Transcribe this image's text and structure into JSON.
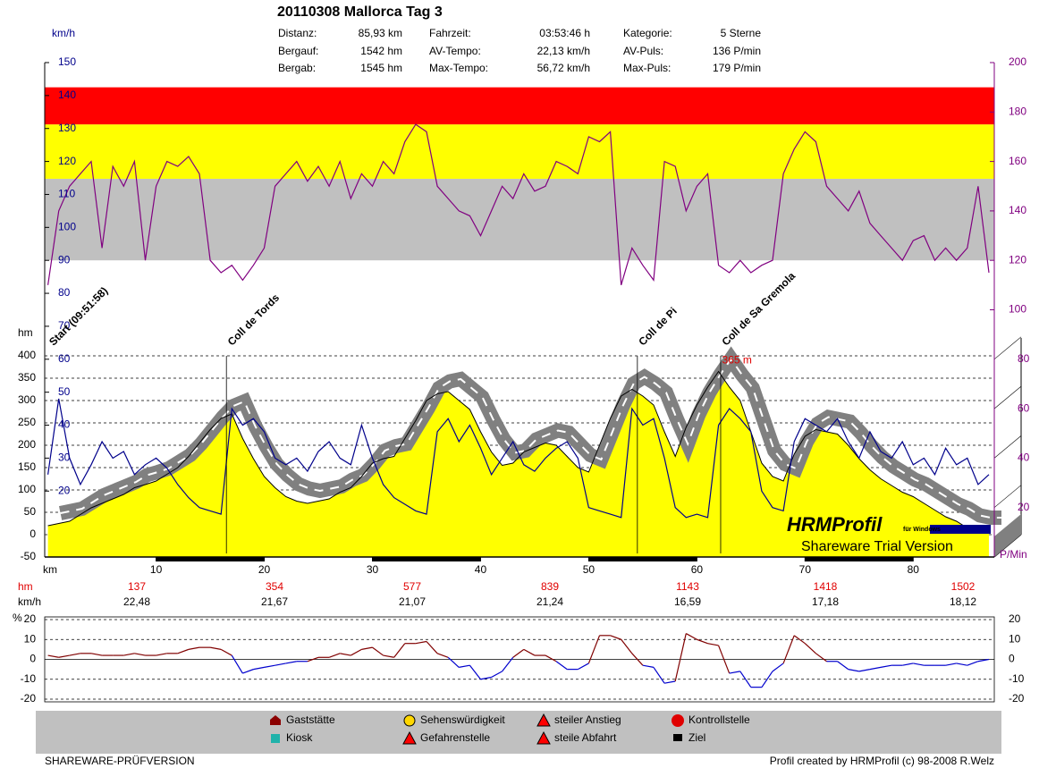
{
  "header": {
    "title": "20110308 Mallorca Tag 3",
    "stats": [
      {
        "label": "Distanz:",
        "value": "85,93 km"
      },
      {
        "label": "Fahrzeit:",
        "value": "03:53:46 h"
      },
      {
        "label": "Kategorie:",
        "value": "5 Sterne"
      },
      {
        "label": "Bergauf:",
        "value": "1542 hm"
      },
      {
        "label": "AV-Tempo:",
        "value": "22,13 km/h"
      },
      {
        "label": "AV-Puls:",
        "value": "136 P/min"
      },
      {
        "label": "Bergab:",
        "value": "1545 hm"
      },
      {
        "label": "Max-Tempo:",
        "value": "56,72 km/h"
      },
      {
        "label": "Max-Puls:",
        "value": "179 P/min"
      }
    ]
  },
  "chart_data": [
    {
      "type": "line",
      "xlabel": "km",
      "xlim": [
        -0.3,
        87.5
      ],
      "xticks": [
        10,
        20,
        30,
        40,
        50,
        60,
        70,
        80
      ],
      "ylabel": "km/h",
      "ylim": [
        0,
        150
      ],
      "yticks": [
        20,
        30,
        40,
        50,
        60,
        70,
        80,
        90,
        100,
        110,
        120,
        130,
        140,
        150
      ],
      "hm_label": "hm",
      "hm_lim": [
        -50,
        400
      ],
      "hm_ticks": [
        -50,
        0,
        50,
        100,
        150,
        200,
        250,
        300,
        350,
        400
      ],
      "y2label": "P/Min",
      "y2lim": [
        0,
        200
      ],
      "y2ticks": [
        100,
        120,
        140,
        160,
        180,
        200
      ],
      "depth_ticks": [
        20,
        40,
        60,
        80
      ],
      "grid": true,
      "zones": [
        {
          "from": 120,
          "to": 153,
          "color": "#c0c0c0"
        },
        {
          "from": 153,
          "to": 175,
          "color": "#ffff00"
        },
        {
          "from": 175,
          "to": 190,
          "color": "#ff0000"
        }
      ],
      "x": [
        0,
        1,
        2,
        3,
        4,
        5,
        6,
        7,
        8,
        9,
        10,
        11,
        12,
        13,
        14,
        15,
        16,
        17,
        18,
        19,
        20,
        21,
        22,
        23,
        24,
        25,
        26,
        27,
        28,
        29,
        30,
        31,
        32,
        33,
        34,
        35,
        36,
        37,
        38,
        39,
        40,
        41,
        42,
        43,
        44,
        45,
        46,
        47,
        48,
        49,
        50,
        51,
        52,
        53,
        54,
        55,
        56,
        57,
        58,
        59,
        60,
        61,
        62,
        63,
        64,
        65,
        66,
        67,
        68,
        69,
        70,
        71,
        72,
        73,
        74,
        75,
        76,
        77,
        78,
        79,
        80,
        81,
        82,
        83,
        84,
        85,
        86,
        87
      ],
      "series": [
        {
          "axis": "hm",
          "color": "#ffff00",
          "values": [
            20,
            25,
            30,
            45,
            60,
            70,
            80,
            90,
            105,
            112,
            120,
            135,
            150,
            175,
            205,
            235,
            260,
            270,
            215,
            170,
            130,
            105,
            85,
            75,
            70,
            75,
            80,
            95,
            105,
            130,
            160,
            170,
            175,
            215,
            255,
            300,
            315,
            320,
            300,
            280,
            230,
            185,
            155,
            160,
            185,
            195,
            205,
            200,
            175,
            150,
            140,
            200,
            260,
            310,
            325,
            310,
            290,
            230,
            175,
            240,
            290,
            330,
            365,
            330,
            300,
            230,
            160,
            130,
            120,
            180,
            220,
            235,
            230,
            225,
            200,
            170,
            145,
            125,
            110,
            95,
            85,
            70,
            55,
            40,
            30,
            15,
            10,
            10
          ]
        },
        {
          "axis": "y",
          "color": "#00008b",
          "values": [
            25,
            48,
            30,
            22,
            28,
            35,
            30,
            32,
            25,
            28,
            30,
            27,
            22,
            18,
            15,
            14,
            13,
            45,
            40,
            42,
            38,
            30,
            28,
            30,
            26,
            32,
            35,
            30,
            28,
            40,
            30,
            22,
            18,
            16,
            14,
            13,
            38,
            42,
            35,
            40,
            33,
            25,
            30,
            35,
            28,
            26,
            30,
            33,
            35,
            30,
            15,
            14,
            13,
            12,
            45,
            40,
            42,
            30,
            15,
            12,
            13,
            12,
            40,
            45,
            42,
            38,
            20,
            15,
            14,
            35,
            42,
            40,
            38,
            42,
            35,
            30,
            38,
            32,
            30,
            35,
            28,
            30,
            25,
            33,
            28,
            30,
            22,
            25
          ]
        },
        {
          "axis": "y2",
          "color": "#800080",
          "values": [
            110,
            140,
            150,
            155,
            160,
            125,
            158,
            150,
            160,
            120,
            150,
            160,
            158,
            162,
            155,
            120,
            115,
            118,
            112,
            118,
            125,
            150,
            155,
            160,
            152,
            158,
            150,
            160,
            145,
            155,
            150,
            160,
            155,
            168,
            175,
            172,
            150,
            145,
            140,
            138,
            130,
            140,
            150,
            145,
            155,
            148,
            150,
            160,
            158,
            155,
            170,
            168,
            172,
            110,
            125,
            118,
            112,
            160,
            158,
            140,
            150,
            155,
            118,
            115,
            120,
            115,
            118,
            120,
            155,
            165,
            172,
            168,
            150,
            145,
            140,
            148,
            135,
            130,
            125,
            120,
            128,
            130,
            120,
            125,
            120,
            125,
            150,
            115
          ]
        }
      ],
      "annotations": [
        {
          "text": "Start (09:51:58)",
          "x": 0
        },
        {
          "text": "Coll de Tords",
          "x": 16.5
        },
        {
          "text": "Coll de Pi",
          "x": 54.5
        },
        {
          "text": "Coll de Sa Gremola",
          "x": 62.2
        }
      ],
      "peak": {
        "text": "365 m",
        "x": 62,
        "value": 365
      },
      "watermark": {
        "title": "HRMProfil",
        "sub": "für Windows",
        "note": "Shareware Trial  Version"
      }
    },
    {
      "type": "line",
      "ylabel": "%",
      "xlim": [
        -0.3,
        87.5
      ],
      "ylim": [
        -20,
        20
      ],
      "yticks": [
        -20,
        -10,
        0,
        10,
        20
      ],
      "x": [
        0,
        1,
        2,
        3,
        4,
        5,
        6,
        7,
        8,
        9,
        10,
        11,
        12,
        13,
        14,
        15,
        16,
        17,
        18,
        19,
        20,
        21,
        22,
        23,
        24,
        25,
        26,
        27,
        28,
        29,
        30,
        31,
        32,
        33,
        34,
        35,
        36,
        37,
        38,
        39,
        40,
        41,
        42,
        43,
        44,
        45,
        46,
        47,
        48,
        49,
        50,
        51,
        52,
        53,
        54,
        55,
        56,
        57,
        58,
        59,
        60,
        61,
        62,
        63,
        64,
        65,
        66,
        67,
        68,
        69,
        70,
        71,
        72,
        73,
        74,
        75,
        76,
        77,
        78,
        79,
        80,
        81,
        82,
        83,
        84,
        85,
        86,
        87
      ],
      "series": [
        {
          "color": "#800000",
          "negative_color": "#0000cd",
          "values": [
            2,
            1,
            2,
            3,
            3,
            2,
            2,
            2,
            3,
            2,
            2,
            3,
            3,
            5,
            6,
            6,
            5,
            2,
            -7,
            -5,
            -4,
            -3,
            -2,
            -1,
            -1,
            1,
            1,
            3,
            2,
            5,
            6,
            2,
            1,
            8,
            8,
            9,
            3,
            1,
            -4,
            -3,
            -10,
            -9,
            -6,
            1,
            5,
            2,
            2,
            -1,
            -5,
            -5,
            -2,
            12,
            12,
            10,
            3,
            -3,
            -4,
            -12,
            -11,
            13,
            10,
            8,
            7,
            -7,
            -6,
            -14,
            -14,
            -6,
            -2,
            12,
            8,
            3,
            -1,
            -1,
            -5,
            -6,
            -5,
            -4,
            -3,
            -3,
            -2,
            -3,
            -3,
            -3,
            -2,
            -3,
            -1,
            0
          ]
        }
      ]
    }
  ],
  "summary": {
    "hm_label": "hm",
    "hm": [
      137,
      354,
      577,
      839,
      1143,
      1418,
      1502
    ],
    "kmh_label": "km/h",
    "kmh": [
      "22,48",
      "21,67",
      "21,07",
      "21,24",
      "16,59",
      "17,18",
      "18,12"
    ]
  },
  "legend": [
    "Gaststätte",
    "Kiosk",
    "Sehenswürdigkeit",
    "Gefahrenstelle",
    "steiler Anstieg",
    "steile Abfahrt",
    "Kontrollstelle",
    "Ziel"
  ],
  "footer": {
    "left": "SHAREWARE-PRÜFVERSION",
    "right": "Profil created by HRMProfil (c) 98-2008 R.Welz"
  }
}
